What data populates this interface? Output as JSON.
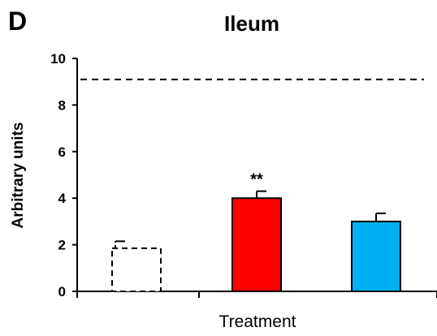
{
  "panel_label": "D",
  "chart_data": {
    "type": "bar",
    "title": "Ileum",
    "xlabel": "Treatment",
    "ylabel": "Arbitrary units",
    "ylim": [
      0,
      10
    ],
    "yticks": [
      0,
      2,
      4,
      6,
      8,
      10
    ],
    "grid": false,
    "reference_line": {
      "y": 9.1,
      "style": "dashed"
    },
    "bars": [
      {
        "value": 1.85,
        "error": 0.3,
        "color": "#ffffff",
        "border": "dashed",
        "annotation": ""
      },
      {
        "value": 4.0,
        "error": 0.3,
        "color": "#ff0000",
        "border": "solid",
        "annotation": "**"
      },
      {
        "value": 3.0,
        "error": 0.35,
        "color": "#00b0f0",
        "border": "solid",
        "annotation": ""
      }
    ]
  }
}
